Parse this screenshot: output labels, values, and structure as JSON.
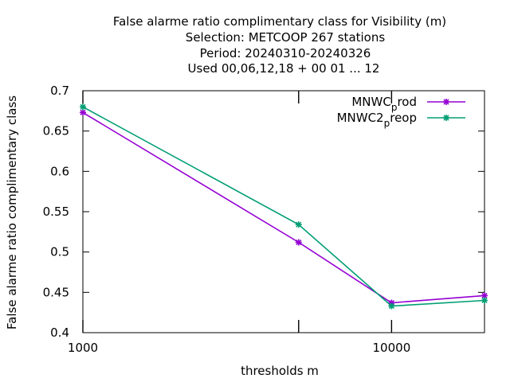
{
  "chart_data": {
    "type": "line",
    "title_lines": [
      "False alarme ratio complimentary class  for Visibility (m)",
      "Selection: METCOOP    267 stations",
      "Period: 20240310-20240326",
      "Used  00,06,12,18 + 00 01 ... 12"
    ],
    "xlabel": "thresholds m",
    "ylabel": "False alarme ratio complimentary class",
    "x_scale": "log",
    "xlim": [
      1000,
      20000
    ],
    "ylim": [
      0.4,
      0.7
    ],
    "x_ticks": [
      {
        "value": 1000,
        "label": "1000"
      },
      {
        "value": 10000,
        "label": "10000"
      }
    ],
    "x_minor_ticks": [
      5000
    ],
    "y_ticks": [
      {
        "value": 0.4,
        "label": "0.4"
      },
      {
        "value": 0.45,
        "label": "0.45"
      },
      {
        "value": 0.5,
        "label": "0.5"
      },
      {
        "value": 0.55,
        "label": "0.55"
      },
      {
        "value": 0.6,
        "label": "0.6"
      },
      {
        "value": 0.65,
        "label": "0.65"
      },
      {
        "value": 0.7,
        "label": "0.7"
      }
    ],
    "grid": false,
    "legend_position": "top-right",
    "series": [
      {
        "name_main": "MNWC",
        "name_sub": "p",
        "name_rest": "rod",
        "color": "#9400d3",
        "marker": "asterisk",
        "x": [
          1000,
          5000,
          10000,
          20000
        ],
        "y": [
          0.673,
          0.512,
          0.437,
          0.446
        ]
      },
      {
        "name_main": "MNWC2",
        "name_sub": "p",
        "name_rest": "reop",
        "color": "#009e73",
        "marker": "asterisk",
        "x": [
          1000,
          5000,
          10000,
          20000
        ],
        "y": [
          0.68,
          0.534,
          0.433,
          0.44
        ]
      }
    ]
  }
}
